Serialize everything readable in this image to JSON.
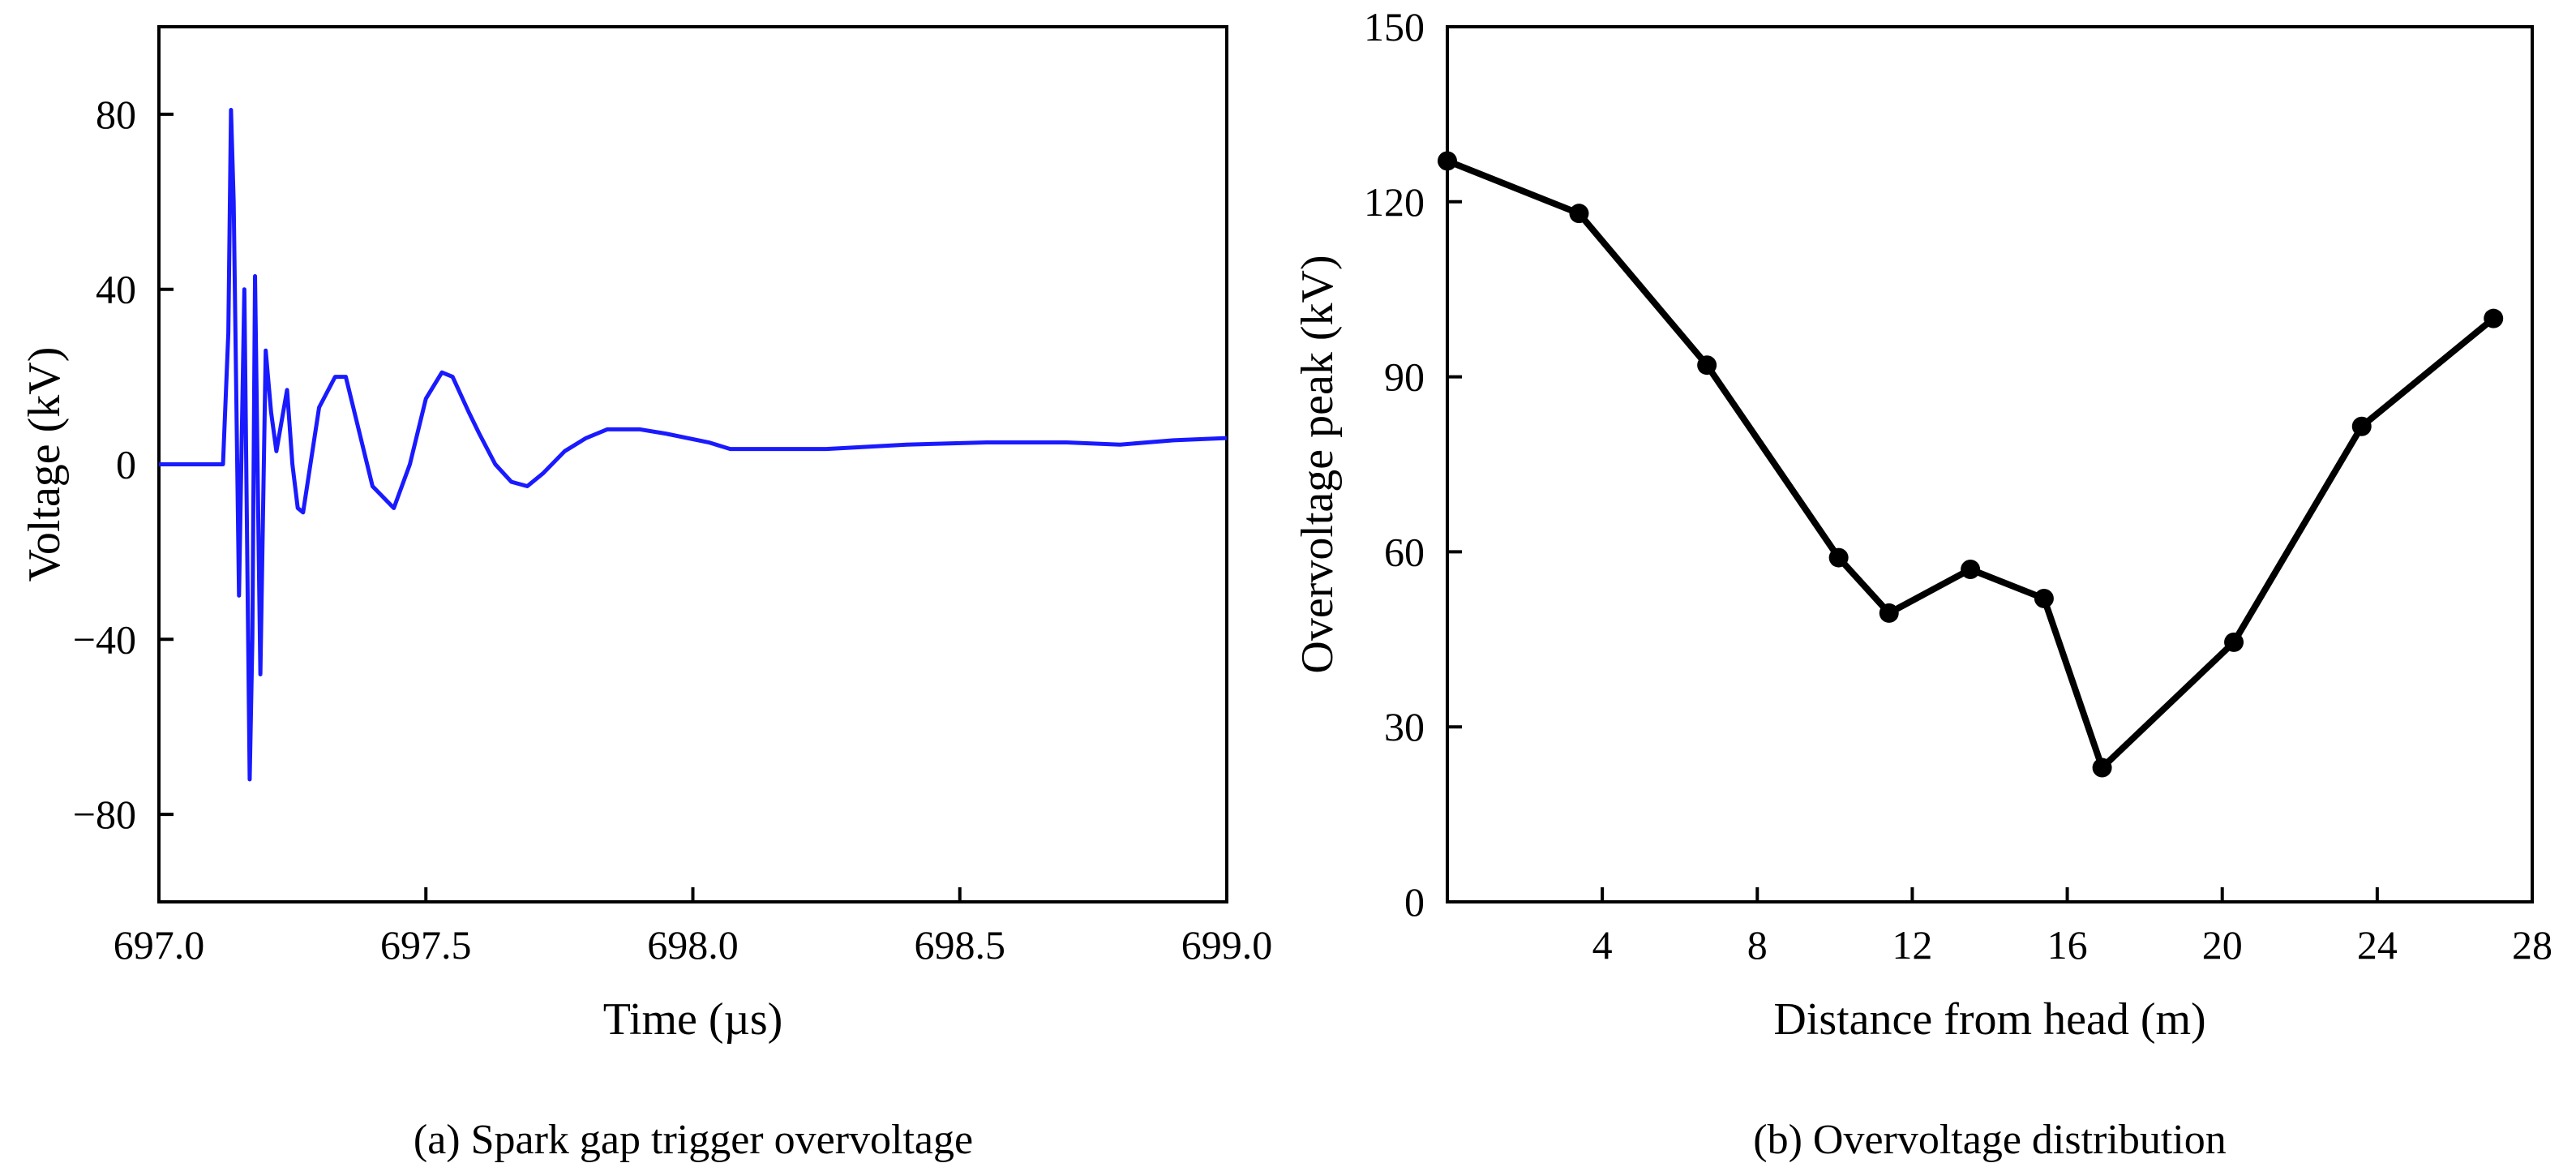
{
  "chart_data": [
    {
      "type": "line",
      "caption": "(a) Spark gap trigger overvoltage",
      "xlabel": "Time (µs)",
      "ylabel": "Voltage (kV)",
      "xlim": [
        697.0,
        699.0
      ],
      "ylim": [
        -100,
        100
      ],
      "xticks": [
        697.0,
        697.5,
        698.0,
        698.5,
        699.0
      ],
      "xtick_labels": [
        "697.0",
        "697.5",
        "698.0",
        "698.5",
        "699.0"
      ],
      "yticks": [
        -80,
        -40,
        0,
        40,
        80
      ],
      "ytick_labels": [
        "−80",
        "−40",
        "0",
        "40",
        "80"
      ],
      "line_color": "#1a1aff",
      "series": [
        {
          "name": "Voltage",
          "x": [
            697.0,
            697.12,
            697.13,
            697.135,
            697.14,
            697.15,
            697.16,
            697.17,
            697.175,
            697.18,
            697.19,
            697.2,
            697.21,
            697.22,
            697.23,
            697.24,
            697.25,
            697.26,
            697.27,
            697.29,
            697.3,
            697.33,
            697.35,
            697.37,
            697.4,
            697.44,
            697.47,
            697.5,
            697.53,
            697.55,
            697.58,
            697.6,
            697.63,
            697.66,
            697.69,
            697.72,
            697.76,
            697.8,
            697.84,
            697.9,
            697.95,
            698.03,
            698.07,
            698.15,
            698.25,
            698.4,
            698.55,
            698.7,
            698.8,
            698.9,
            699.0
          ],
          "y": [
            0,
            0,
            30,
            81,
            60,
            -30,
            40,
            -72,
            -40,
            43,
            -48,
            26,
            12,
            3,
            10,
            17,
            0,
            -10,
            -11,
            5,
            13,
            20,
            20,
            10,
            -5,
            -10,
            0,
            15,
            21,
            20,
            12,
            7,
            0,
            -4,
            -5,
            -2,
            3,
            6,
            8,
            8,
            7,
            5,
            3.5,
            3.5,
            3.5,
            4.5,
            5,
            5,
            4.5,
            5.5,
            6
          ]
        }
      ]
    },
    {
      "type": "line",
      "caption": "(b) Overvoltage distribution",
      "xlabel": "Distance from head (m)",
      "ylabel": "Overvoltage peak (kV)",
      "xlim": [
        0,
        28
      ],
      "ylim": [
        0,
        150
      ],
      "xticks": [
        4,
        8,
        12,
        16,
        20,
        24,
        28
      ],
      "xtick_labels": [
        "4",
        "8",
        "12",
        "16",
        "20",
        "24",
        "28"
      ],
      "yticks": [
        0,
        30,
        60,
        90,
        120,
        150
      ],
      "ytick_labels": [
        "0",
        "30",
        "60",
        "90",
        "120",
        "150"
      ],
      "line_color": "#000000",
      "series": [
        {
          "name": "Overvoltage peak",
          "x": [
            0,
            3.4,
            6.7,
            10.1,
            11.4,
            13.5,
            15.4,
            16.9,
            20.3,
            23.6,
            27.0
          ],
          "y": [
            127,
            118,
            92,
            59,
            49.5,
            57,
            52,
            23,
            44.5,
            81.5,
            100
          ]
        }
      ]
    }
  ]
}
